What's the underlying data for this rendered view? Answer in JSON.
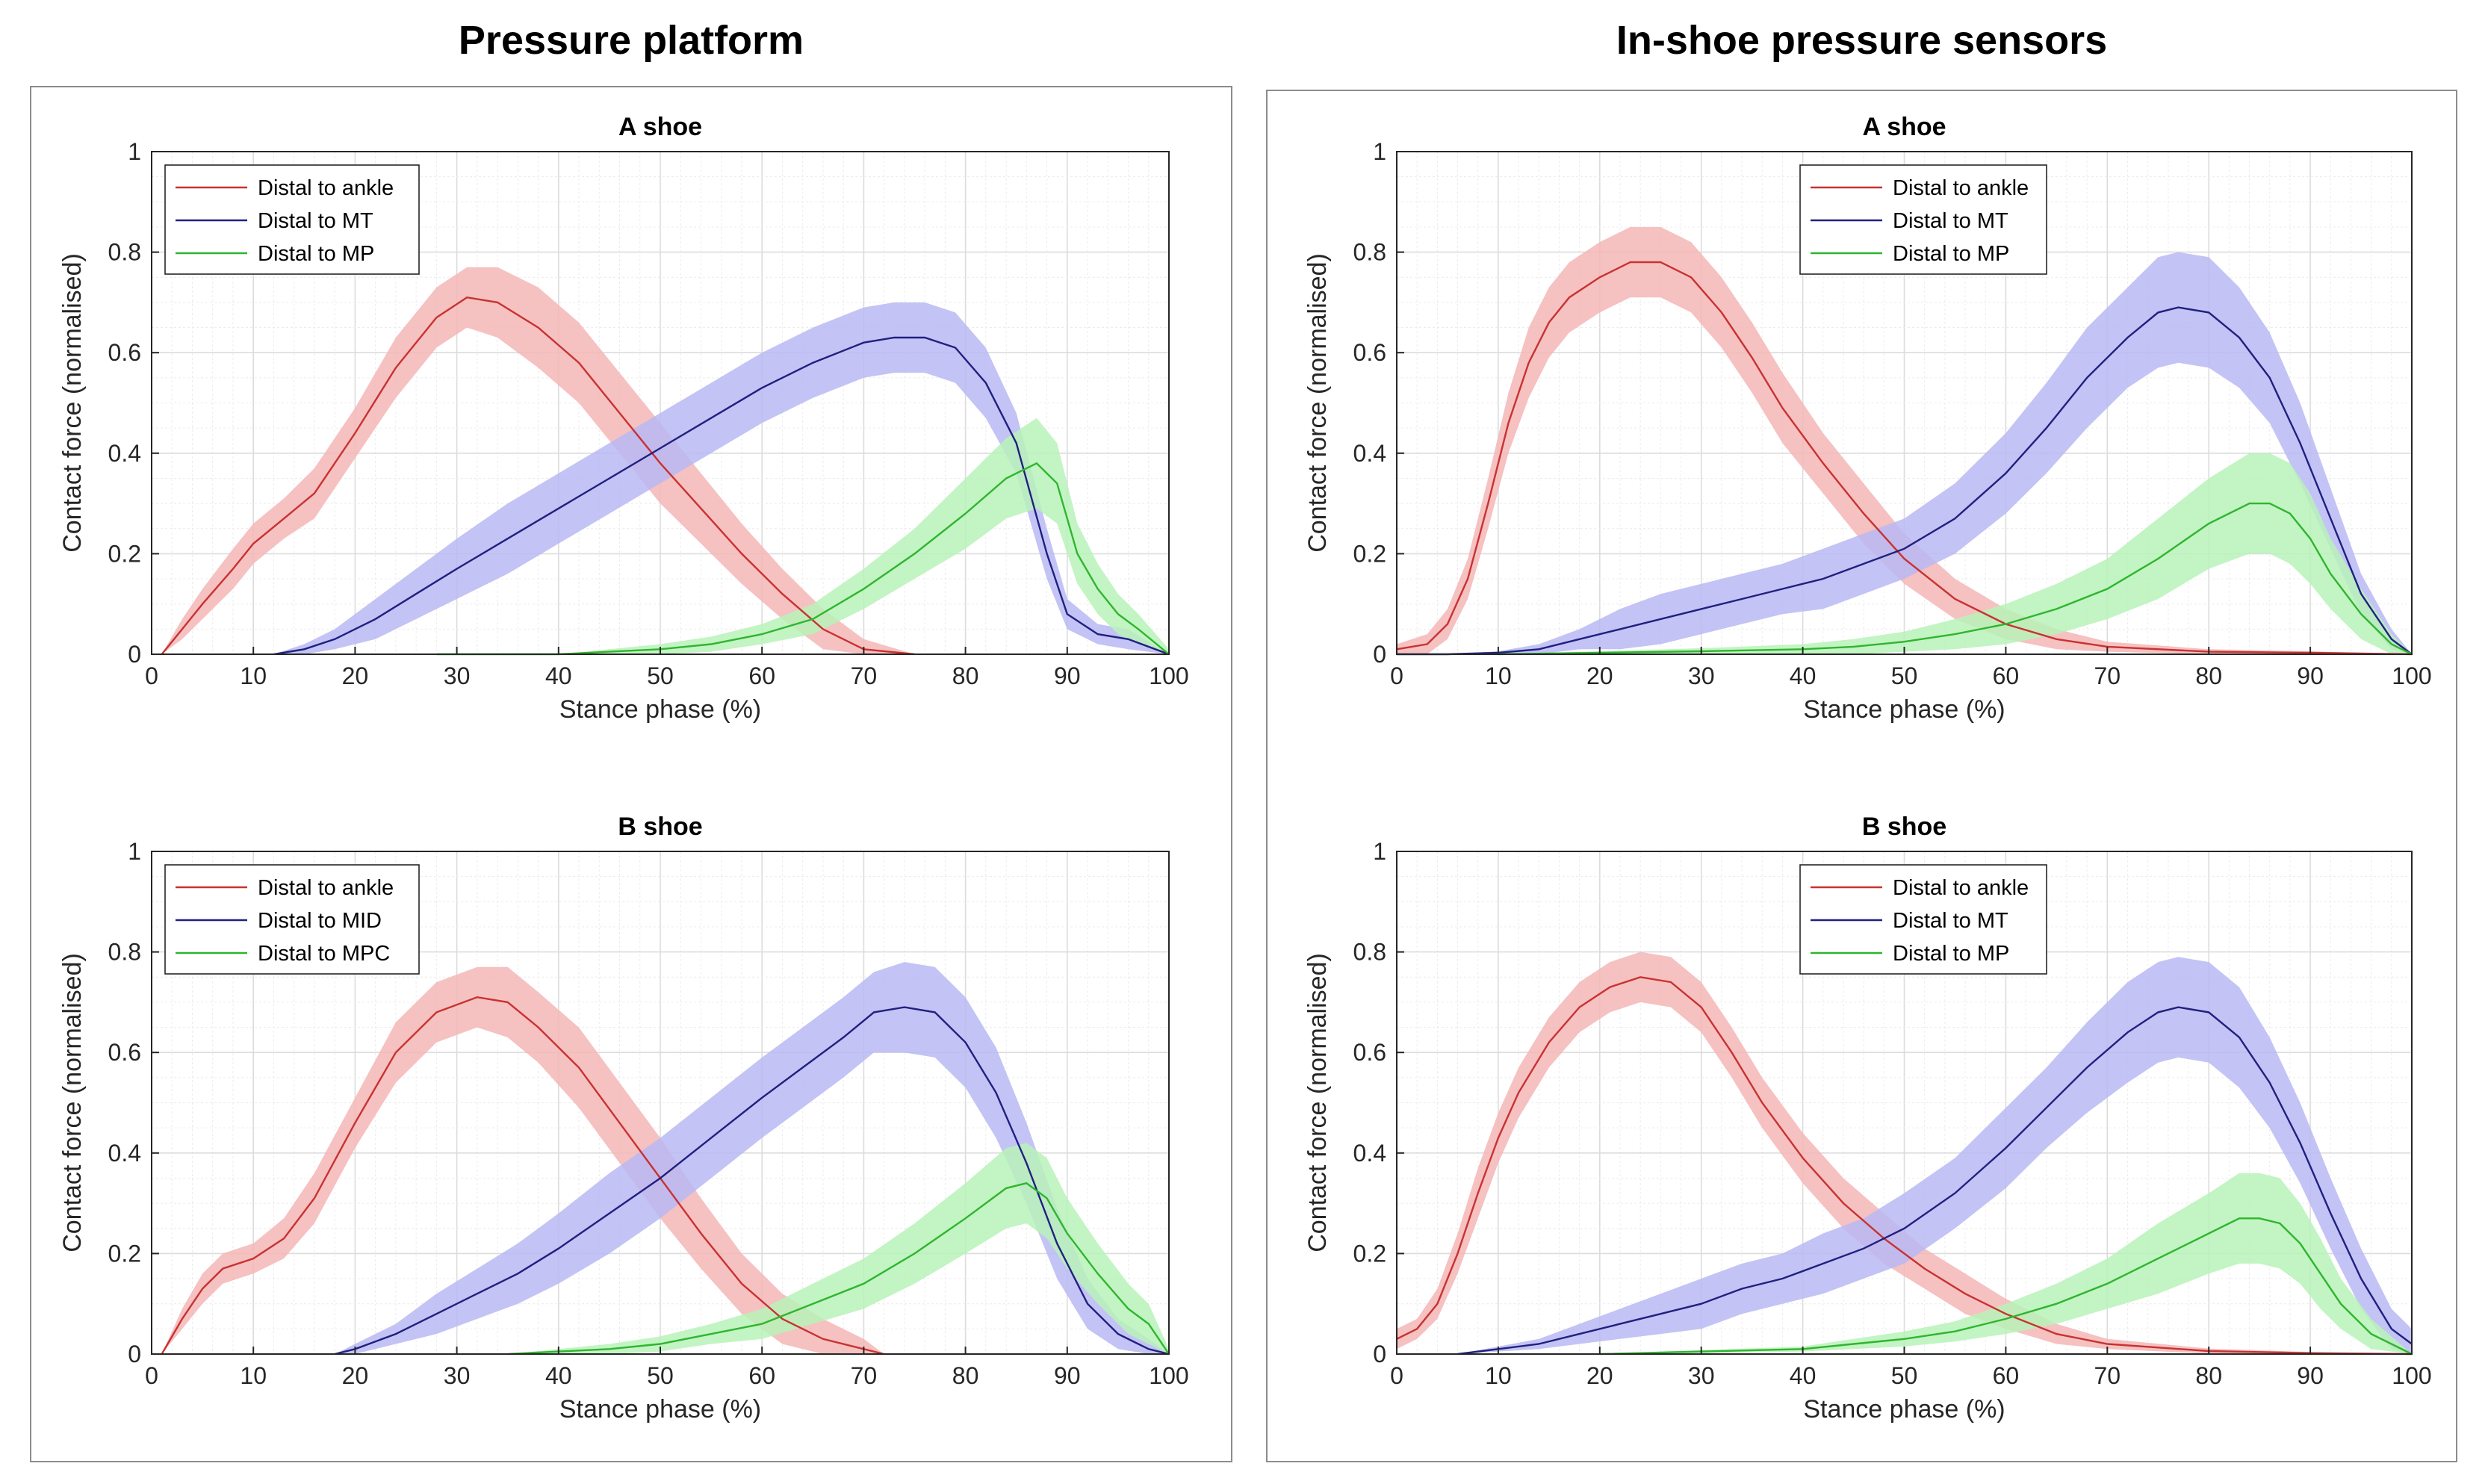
{
  "page": {
    "left_title": "Pressure platform",
    "right_title": "In-shoe pressure sensors"
  },
  "colors": {
    "ankle_line": "#c83232",
    "ankle_band": "#f4b6b6",
    "mid_line": "#202080",
    "mid_band": "#b9b9f3",
    "distal_line": "#2fb52f",
    "distal_band": "#b8f2b8"
  },
  "chart_data": [
    {
      "id": "pp-a",
      "type": "line",
      "group": "Pressure platform",
      "title": "A shoe",
      "xlabel": "Stance phase (%)",
      "ylabel": "Contact force (normalised)",
      "xlim": [
        0,
        100
      ],
      "ylim": [
        0,
        1
      ],
      "xticks": [
        0,
        10,
        20,
        30,
        40,
        50,
        60,
        70,
        80,
        90,
        100
      ],
      "yticks": [
        0,
        0.2,
        0.4,
        0.6,
        0.8,
        1
      ],
      "grid": "minor",
      "legend_position": "top-left",
      "series": [
        {
          "name": "Distal to ankle",
          "color_key": "ankle",
          "x": [
            1,
            3,
            5,
            8,
            10,
            13,
            16,
            20,
            24,
            28,
            31,
            34,
            38,
            42,
            46,
            50,
            54,
            58,
            62,
            66,
            70,
            75
          ],
          "y": [
            0,
            0.05,
            0.1,
            0.17,
            0.22,
            0.27,
            0.32,
            0.44,
            0.57,
            0.67,
            0.71,
            0.7,
            0.65,
            0.58,
            0.48,
            0.38,
            0.29,
            0.2,
            0.12,
            0.05,
            0.01,
            0
          ],
          "band": [
            0,
            0.02,
            0.03,
            0.04,
            0.04,
            0.04,
            0.05,
            0.05,
            0.06,
            0.06,
            0.06,
            0.07,
            0.08,
            0.08,
            0.08,
            0.08,
            0.07,
            0.06,
            0.05,
            0.04,
            0.02,
            0
          ]
        },
        {
          "name": "Distal to MT",
          "color_key": "mid",
          "x": [
            12,
            15,
            18,
            22,
            26,
            30,
            35,
            40,
            45,
            50,
            55,
            60,
            65,
            70,
            73,
            76,
            79,
            82,
            85,
            88,
            90,
            93,
            96,
            100
          ],
          "y": [
            0,
            0.01,
            0.03,
            0.07,
            0.12,
            0.17,
            0.23,
            0.29,
            0.35,
            0.41,
            0.47,
            0.53,
            0.58,
            0.62,
            0.63,
            0.63,
            0.61,
            0.54,
            0.42,
            0.2,
            0.08,
            0.04,
            0.03,
            0
          ],
          "band": [
            0,
            0.01,
            0.02,
            0.04,
            0.05,
            0.06,
            0.07,
            0.07,
            0.07,
            0.07,
            0.07,
            0.07,
            0.07,
            0.07,
            0.07,
            0.07,
            0.07,
            0.07,
            0.06,
            0.05,
            0.03,
            0.02,
            0.02,
            0
          ]
        },
        {
          "name": "Distal to MP",
          "color_key": "distal",
          "x": [
            28,
            35,
            40,
            45,
            50,
            55,
            60,
            65,
            70,
            75,
            80,
            84,
            87,
            89,
            91,
            93,
            95,
            97,
            100
          ],
          "y": [
            0,
            0,
            0,
            0.005,
            0.01,
            0.02,
            0.04,
            0.07,
            0.13,
            0.2,
            0.28,
            0.35,
            0.38,
            0.34,
            0.2,
            0.13,
            0.08,
            0.05,
            0
          ],
          "band": [
            0,
            0,
            0,
            0.005,
            0.01,
            0.015,
            0.02,
            0.03,
            0.04,
            0.05,
            0.07,
            0.08,
            0.09,
            0.08,
            0.06,
            0.05,
            0.04,
            0.03,
            0.01
          ]
        }
      ]
    },
    {
      "id": "pp-b",
      "type": "line",
      "group": "Pressure platform",
      "title": "B shoe",
      "xlabel": "Stance phase (%)",
      "ylabel": "Contact force (normalised)",
      "xlim": [
        0,
        100
      ],
      "ylim": [
        0,
        1
      ],
      "xticks": [
        0,
        10,
        20,
        30,
        40,
        50,
        60,
        70,
        80,
        90,
        100
      ],
      "yticks": [
        0,
        0.2,
        0.4,
        0.6,
        0.8,
        1
      ],
      "grid": "minor",
      "legend_position": "top-left",
      "series": [
        {
          "name": "Distal to ankle",
          "color_key": "ankle",
          "x": [
            1,
            3,
            5,
            7,
            10,
            13,
            16,
            20,
            24,
            28,
            32,
            35,
            38,
            42,
            46,
            50,
            54,
            58,
            62,
            66,
            70,
            72
          ],
          "y": [
            0,
            0.07,
            0.13,
            0.17,
            0.19,
            0.23,
            0.31,
            0.46,
            0.6,
            0.68,
            0.71,
            0.7,
            0.65,
            0.57,
            0.46,
            0.35,
            0.24,
            0.14,
            0.07,
            0.03,
            0.01,
            0
          ],
          "band": [
            0,
            0.02,
            0.03,
            0.03,
            0.03,
            0.04,
            0.05,
            0.05,
            0.06,
            0.06,
            0.06,
            0.07,
            0.07,
            0.08,
            0.08,
            0.08,
            0.07,
            0.06,
            0.05,
            0.04,
            0.02,
            0
          ]
        },
        {
          "name": "Distal to MID",
          "color_key": "mid",
          "x": [
            18,
            20,
            24,
            28,
            32,
            36,
            40,
            45,
            50,
            55,
            60,
            64,
            68,
            71,
            74,
            77,
            80,
            83,
            86,
            89,
            92,
            95,
            98,
            100
          ],
          "y": [
            0,
            0.01,
            0.04,
            0.08,
            0.12,
            0.16,
            0.21,
            0.28,
            0.35,
            0.43,
            0.51,
            0.57,
            0.63,
            0.68,
            0.69,
            0.68,
            0.62,
            0.52,
            0.38,
            0.22,
            0.1,
            0.04,
            0.01,
            0
          ],
          "band": [
            0,
            0.01,
            0.02,
            0.04,
            0.05,
            0.06,
            0.07,
            0.08,
            0.08,
            0.08,
            0.08,
            0.08,
            0.08,
            0.08,
            0.09,
            0.09,
            0.09,
            0.09,
            0.08,
            0.07,
            0.05,
            0.03,
            0.02,
            0
          ]
        },
        {
          "name": "Distal to MPC",
          "color_key": "distal",
          "x": [
            35,
            40,
            45,
            50,
            55,
            60,
            65,
            70,
            75,
            80,
            84,
            86,
            88,
            90,
            93,
            96,
            98,
            100
          ],
          "y": [
            0,
            0.005,
            0.01,
            0.02,
            0.04,
            0.06,
            0.1,
            0.14,
            0.2,
            0.27,
            0.33,
            0.34,
            0.31,
            0.24,
            0.16,
            0.09,
            0.06,
            0
          ],
          "band": [
            0,
            0.005,
            0.01,
            0.015,
            0.02,
            0.03,
            0.04,
            0.05,
            0.06,
            0.07,
            0.08,
            0.08,
            0.08,
            0.07,
            0.06,
            0.05,
            0.04,
            0.01
          ]
        }
      ]
    },
    {
      "id": "is-a",
      "type": "line",
      "group": "In-shoe pressure sensors",
      "title": "A shoe",
      "xlabel": "Stance phase (%)",
      "ylabel": "Contact force (normalised)",
      "xlim": [
        0,
        100
      ],
      "ylim": [
        0,
        1
      ],
      "xticks": [
        0,
        10,
        20,
        30,
        40,
        50,
        60,
        70,
        80,
        90,
        100
      ],
      "yticks": [
        0,
        0.2,
        0.4,
        0.6,
        0.8,
        1
      ],
      "grid": "minor",
      "legend_position": "top",
      "series": [
        {
          "name": "Distal to ankle",
          "color_key": "ankle",
          "x": [
            0,
            3,
            5,
            7,
            9,
            11,
            13,
            15,
            17,
            20,
            23,
            26,
            29,
            32,
            35,
            38,
            42,
            46,
            50,
            55,
            60,
            65,
            70,
            80,
            90,
            100
          ],
          "y": [
            0.01,
            0.02,
            0.06,
            0.15,
            0.3,
            0.46,
            0.58,
            0.66,
            0.71,
            0.75,
            0.78,
            0.78,
            0.75,
            0.68,
            0.59,
            0.49,
            0.38,
            0.28,
            0.19,
            0.11,
            0.06,
            0.03,
            0.015,
            0.005,
            0.003,
            0
          ],
          "band": [
            0.01,
            0.02,
            0.03,
            0.04,
            0.05,
            0.06,
            0.07,
            0.07,
            0.07,
            0.07,
            0.07,
            0.07,
            0.07,
            0.07,
            0.07,
            0.07,
            0.06,
            0.06,
            0.05,
            0.04,
            0.03,
            0.02,
            0.01,
            0.005,
            0.003,
            0
          ]
        },
        {
          "name": "Distal to MT",
          "color_key": "mid",
          "x": [
            0,
            5,
            10,
            14,
            18,
            22,
            26,
            30,
            34,
            38,
            42,
            46,
            50,
            55,
            60,
            64,
            68,
            72,
            75,
            77,
            80,
            83,
            86,
            89,
            92,
            95,
            98,
            100
          ],
          "y": [
            0,
            0,
            0.003,
            0.01,
            0.03,
            0.05,
            0.07,
            0.09,
            0.11,
            0.13,
            0.15,
            0.18,
            0.21,
            0.27,
            0.36,
            0.45,
            0.55,
            0.63,
            0.68,
            0.69,
            0.68,
            0.63,
            0.55,
            0.42,
            0.27,
            0.12,
            0.03,
            0
          ],
          "band": [
            0,
            0,
            0.003,
            0.01,
            0.02,
            0.04,
            0.05,
            0.05,
            0.05,
            0.05,
            0.06,
            0.06,
            0.06,
            0.07,
            0.08,
            0.09,
            0.1,
            0.1,
            0.11,
            0.11,
            0.11,
            0.1,
            0.09,
            0.08,
            0.06,
            0.04,
            0.02,
            0
          ]
        },
        {
          "name": "Distal to MP",
          "color_key": "distal",
          "x": [
            10,
            20,
            30,
            40,
            45,
            50,
            55,
            60,
            65,
            70,
            75,
            80,
            84,
            86,
            88,
            90,
            92,
            95,
            98,
            100
          ],
          "y": [
            0,
            0.003,
            0.006,
            0.01,
            0.015,
            0.025,
            0.04,
            0.06,
            0.09,
            0.13,
            0.19,
            0.26,
            0.3,
            0.3,
            0.28,
            0.23,
            0.16,
            0.08,
            0.02,
            0
          ],
          "band": [
            0,
            0.003,
            0.006,
            0.01,
            0.015,
            0.02,
            0.03,
            0.04,
            0.05,
            0.06,
            0.08,
            0.09,
            0.1,
            0.1,
            0.1,
            0.09,
            0.07,
            0.05,
            0.02,
            0
          ]
        }
      ]
    },
    {
      "id": "is-b",
      "type": "line",
      "group": "In-shoe pressure sensors",
      "title": "B shoe",
      "xlabel": "Stance phase (%)",
      "ylabel": "Contact force (normalised)",
      "xlim": [
        0,
        100
      ],
      "ylim": [
        0,
        1
      ],
      "xticks": [
        0,
        10,
        20,
        30,
        40,
        50,
        60,
        70,
        80,
        90,
        100
      ],
      "yticks": [
        0,
        0.2,
        0.4,
        0.6,
        0.8,
        1
      ],
      "grid": "minor",
      "legend_position": "top",
      "series": [
        {
          "name": "Distal to ankle",
          "color_key": "ankle",
          "x": [
            0,
            2,
            4,
            6,
            8,
            10,
            12,
            15,
            18,
            21,
            24,
            27,
            30,
            33,
            36,
            40,
            44,
            48,
            52,
            56,
            60,
            65,
            70,
            80,
            90,
            100
          ],
          "y": [
            0.03,
            0.05,
            0.1,
            0.2,
            0.32,
            0.43,
            0.52,
            0.62,
            0.69,
            0.73,
            0.75,
            0.74,
            0.69,
            0.6,
            0.5,
            0.39,
            0.3,
            0.23,
            0.17,
            0.12,
            0.08,
            0.04,
            0.02,
            0.006,
            0.002,
            0
          ],
          "band": [
            0.02,
            0.02,
            0.03,
            0.04,
            0.05,
            0.05,
            0.05,
            0.05,
            0.05,
            0.05,
            0.05,
            0.05,
            0.05,
            0.05,
            0.05,
            0.05,
            0.05,
            0.05,
            0.04,
            0.04,
            0.03,
            0.02,
            0.01,
            0.005,
            0.002,
            0
          ]
        },
        {
          "name": "Distal to MT",
          "color_key": "mid",
          "x": [
            6,
            10,
            14,
            18,
            22,
            26,
            30,
            34,
            38,
            42,
            46,
            50,
            55,
            60,
            64,
            68,
            72,
            75,
            77,
            80,
            83,
            86,
            89,
            92,
            95,
            98,
            100
          ],
          "y": [
            0,
            0.01,
            0.02,
            0.04,
            0.06,
            0.08,
            0.1,
            0.13,
            0.15,
            0.18,
            0.21,
            0.25,
            0.32,
            0.41,
            0.49,
            0.57,
            0.64,
            0.68,
            0.69,
            0.68,
            0.63,
            0.54,
            0.42,
            0.28,
            0.15,
            0.05,
            0.02
          ],
          "band": [
            0,
            0.005,
            0.01,
            0.02,
            0.03,
            0.04,
            0.05,
            0.05,
            0.05,
            0.06,
            0.06,
            0.07,
            0.07,
            0.08,
            0.08,
            0.09,
            0.1,
            0.1,
            0.1,
            0.1,
            0.1,
            0.09,
            0.08,
            0.07,
            0.06,
            0.04,
            0.03
          ]
        },
        {
          "name": "Distal to MP",
          "color_key": "distal",
          "x": [
            20,
            30,
            40,
            45,
            50,
            55,
            60,
            65,
            70,
            75,
            80,
            83,
            85,
            87,
            89,
            91,
            93,
            96,
            100
          ],
          "y": [
            0,
            0.005,
            0.01,
            0.02,
            0.03,
            0.045,
            0.07,
            0.1,
            0.14,
            0.19,
            0.24,
            0.27,
            0.27,
            0.26,
            0.22,
            0.16,
            0.1,
            0.04,
            0
          ],
          "band": [
            0,
            0.003,
            0.005,
            0.01,
            0.015,
            0.02,
            0.03,
            0.04,
            0.05,
            0.07,
            0.08,
            0.09,
            0.09,
            0.09,
            0.08,
            0.07,
            0.05,
            0.03,
            0
          ]
        }
      ]
    }
  ]
}
